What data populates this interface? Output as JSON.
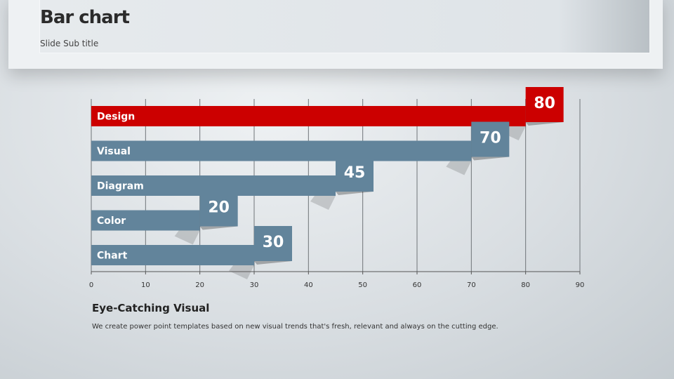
{
  "slide": {
    "title": "Bar chart",
    "subtitle": "Slide Sub title"
  },
  "chart_data": {
    "type": "bar",
    "orientation": "horizontal",
    "categories": [
      "Design",
      "Visual",
      "Diagram",
      "Color",
      "Chart"
    ],
    "values": [
      80,
      70,
      45,
      20,
      30
    ],
    "data_labels": [
      "80",
      "70",
      "45",
      "20",
      "30"
    ],
    "highlight": "Design",
    "xlim": [
      0,
      90
    ],
    "xticks": [
      0,
      10,
      20,
      30,
      40,
      50,
      60,
      70,
      80,
      90
    ],
    "grid": "vertical",
    "colors": {
      "highlight": "#cc0000",
      "default": "#62849b"
    }
  },
  "footer": {
    "heading": "Eye-Catching Visual",
    "text": "We create power point templates based on new visual trends that's fresh, relevant and always on the cutting edge."
  }
}
